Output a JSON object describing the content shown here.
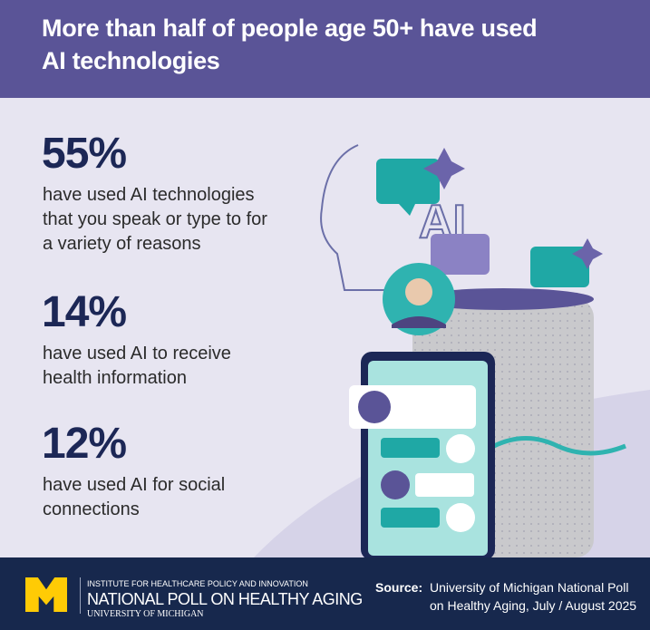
{
  "header": {
    "title_lines": [
      "More than half of people age 50+ have used",
      "AI technologies"
    ]
  },
  "stats": [
    {
      "value": "55%",
      "description_lines": [
        "have used AI technologies",
        "that you speak or type to for",
        "a variety of reasons"
      ]
    },
    {
      "value": "14%",
      "description_lines": [
        "have used AI to receive",
        "health information"
      ]
    },
    {
      "value": "12%",
      "description_lines": [
        "have used AI for social",
        "connections"
      ]
    }
  ],
  "illustration": {
    "ai_text": "AI"
  },
  "footer": {
    "institute": "INSTITUTE FOR HEALTHCARE POLICY AND INNOVATION",
    "poll_name": "NATIONAL POLL ON HEALTHY AGING",
    "university": "UNIVERSITY OF MICHIGAN",
    "source_label": "Source:",
    "source_lines": [
      "University of Michigan National Poll",
      "on Healthy Aging, July / August 2025"
    ]
  }
}
